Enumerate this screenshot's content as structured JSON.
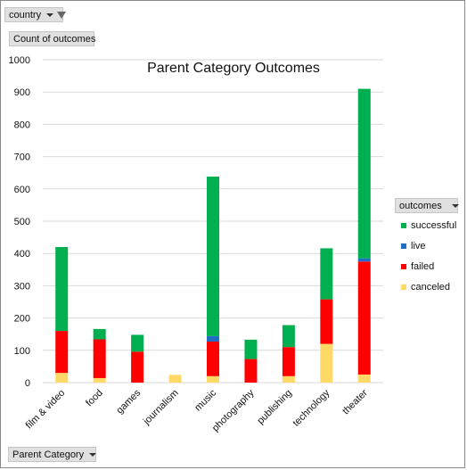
{
  "filters": {
    "country_label": "country",
    "values_label": "Count of outcomes",
    "axis_field_label": "Parent Category",
    "legend_field_label": "outcomes"
  },
  "chart_data": {
    "type": "bar",
    "stacked": true,
    "title": "Parent Category Outcomes",
    "xlabel": "",
    "ylabel": "",
    "ylim": [
      0,
      1000
    ],
    "yticks": [
      0,
      100,
      200,
      300,
      400,
      500,
      600,
      700,
      800,
      900,
      1000
    ],
    "grid": true,
    "legend_position": "right",
    "categories": [
      "film & video",
      "food",
      "games",
      "journalism",
      "music",
      "photography",
      "publishing",
      "technology",
      "theater"
    ],
    "series": [
      {
        "name": "canceled",
        "color": "#ffd966",
        "values": [
          30,
          14,
          0,
          24,
          20,
          0,
          20,
          120,
          25
        ]
      },
      {
        "name": "failed",
        "color": "#ff0000",
        "values": [
          130,
          120,
          96,
          0,
          107,
          73,
          90,
          138,
          350
        ]
      },
      {
        "name": "live",
        "color": "#1f6ec4",
        "values": [
          0,
          0,
          0,
          0,
          17,
          0,
          0,
          0,
          10
        ]
      },
      {
        "name": "successful",
        "color": "#00b050",
        "values": [
          260,
          32,
          52,
          0,
          494,
          60,
          68,
          158,
          525
        ]
      }
    ],
    "legend_order": [
      "successful",
      "live",
      "failed",
      "canceled"
    ]
  }
}
